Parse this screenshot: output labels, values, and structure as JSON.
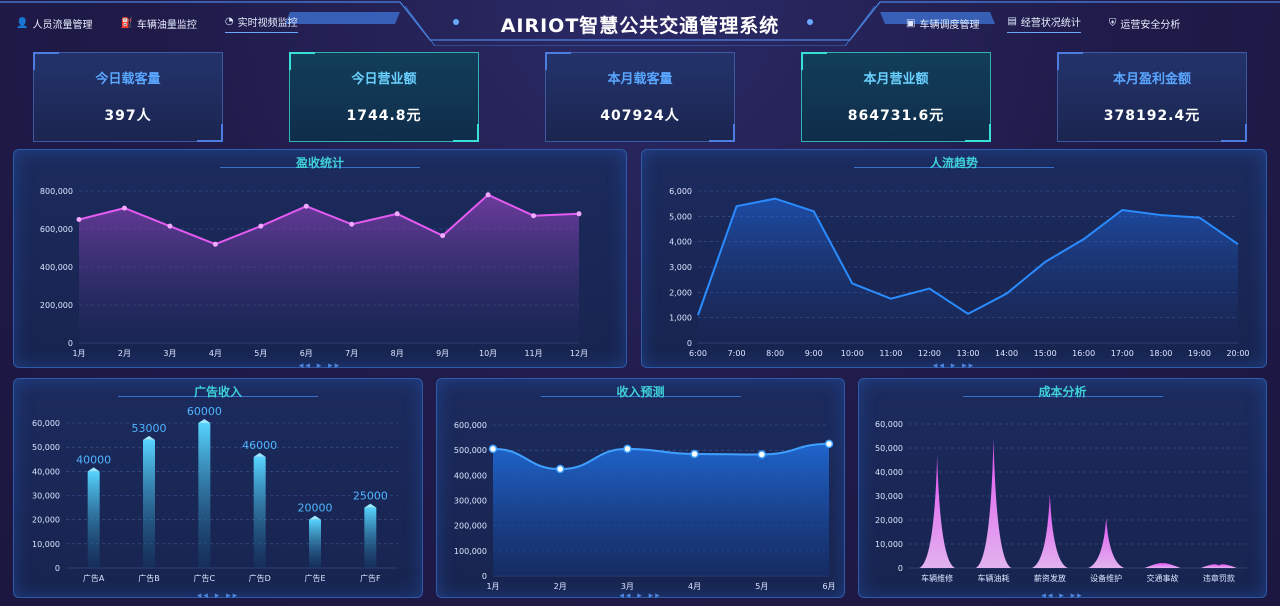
{
  "header": {
    "title": "AIRIOT智慧公共交通管理系统",
    "nav_left": [
      {
        "label": "人员流量管理",
        "icon": "person-icon"
      },
      {
        "label": "车辆油量监控",
        "icon": "fuel-icon"
      },
      {
        "label": "实时视频监控",
        "icon": "camera-icon"
      }
    ],
    "nav_right": [
      {
        "label": "车辆调度管理",
        "icon": "monitor-icon"
      },
      {
        "label": "经营状况统计",
        "icon": "chart-icon"
      },
      {
        "label": "运营安全分析",
        "icon": "shield-icon"
      }
    ]
  },
  "kpis": [
    {
      "label": "今日载客量",
      "value": "397人"
    },
    {
      "label": "今日营业额",
      "value": "1744.8元"
    },
    {
      "label": "本月载客量",
      "value": "407924人"
    },
    {
      "label": "本月营业额",
      "value": "864731.6元"
    },
    {
      "label": "本月盈利金额",
      "value": "378192.4元"
    }
  ],
  "panels": {
    "revenue": "盈收统计",
    "traffic": "人流趋势",
    "ads": "广告收入",
    "forecast": "收入预测",
    "cost": "成本分析"
  },
  "colors": {
    "magenta": "#e35bf0",
    "blue": "#2a8cff",
    "cyan": "#3fd0d8",
    "white": "#ffffff"
  },
  "chart_data": [
    {
      "type": "area",
      "title": "盈收统计",
      "categories": [
        "1月",
        "2月",
        "3月",
        "4月",
        "5月",
        "6月",
        "7月",
        "8月",
        "9月",
        "10月",
        "11月",
        "12月"
      ],
      "series": [
        {
          "values": [
            650000,
            710000,
            615000,
            520000,
            615000,
            720000,
            625000,
            680000,
            565000,
            780000,
            670000,
            680000
          ]
        }
      ],
      "yticks": [
        "0",
        "200,000",
        "400,000",
        "600,000",
        "800,000"
      ],
      "ylim": [
        0,
        800000
      ]
    },
    {
      "type": "area",
      "title": "人流趋势",
      "categories": [
        "6:00",
        "7:00",
        "8:00",
        "9:00",
        "10:00",
        "11:00",
        "12:00",
        "13:00",
        "14:00",
        "15:00",
        "16:00",
        "17:00",
        "18:00",
        "19:00",
        "20:00"
      ],
      "series": [
        {
          "values": [
            1100,
            5400,
            5700,
            5200,
            2350,
            1750,
            2150,
            1150,
            1950,
            3200,
            4100,
            5250,
            5050,
            4950,
            3900
          ]
        }
      ],
      "yticks": [
        "0",
        "1,000",
        "2,000",
        "3,000",
        "4,000",
        "5,000",
        "6,000"
      ],
      "ylim": [
        0,
        6000
      ]
    },
    {
      "type": "bar",
      "title": "广告收入",
      "categories": [
        "广告A",
        "广告B",
        "广告C",
        "广告D",
        "广告E",
        "广告F"
      ],
      "series": [
        {
          "values": [
            40000,
            53000,
            60000,
            46000,
            20000,
            25000
          ]
        }
      ],
      "data_labels": [
        "40000",
        "53000",
        "60000",
        "46000",
        "20000",
        "25000"
      ],
      "yticks": [
        "0",
        "10,000",
        "20,000",
        "30,000",
        "40,000",
        "50,000",
        "60,000"
      ],
      "ylim": [
        0,
        60000
      ]
    },
    {
      "type": "area",
      "title": "收入预测",
      "categories": [
        "1月",
        "2月",
        "3月",
        "4月",
        "5月",
        "6月"
      ],
      "series": [
        {
          "values": [
            505000,
            425000,
            505000,
            485000,
            483000,
            525000
          ]
        }
      ],
      "yticks": [
        "0",
        "100,000",
        "200,000",
        "300,000",
        "400,000",
        "500,000",
        "600,000"
      ],
      "ylim": [
        0,
        600000
      ]
    },
    {
      "type": "bar",
      "title": "成本分析",
      "categories": [
        "车辆维修",
        "车辆油耗",
        "薪资发放",
        "设备维护",
        "交通事故",
        "违章罚款"
      ],
      "series": [
        {
          "values": [
            47000,
            54000,
            31000,
            21000,
            2000,
            1000
          ]
        }
      ],
      "yticks": [
        "0",
        "10,000",
        "20,000",
        "30,000",
        "40,000",
        "50,000",
        "60,000"
      ],
      "ylim": [
        0,
        60000
      ]
    }
  ]
}
